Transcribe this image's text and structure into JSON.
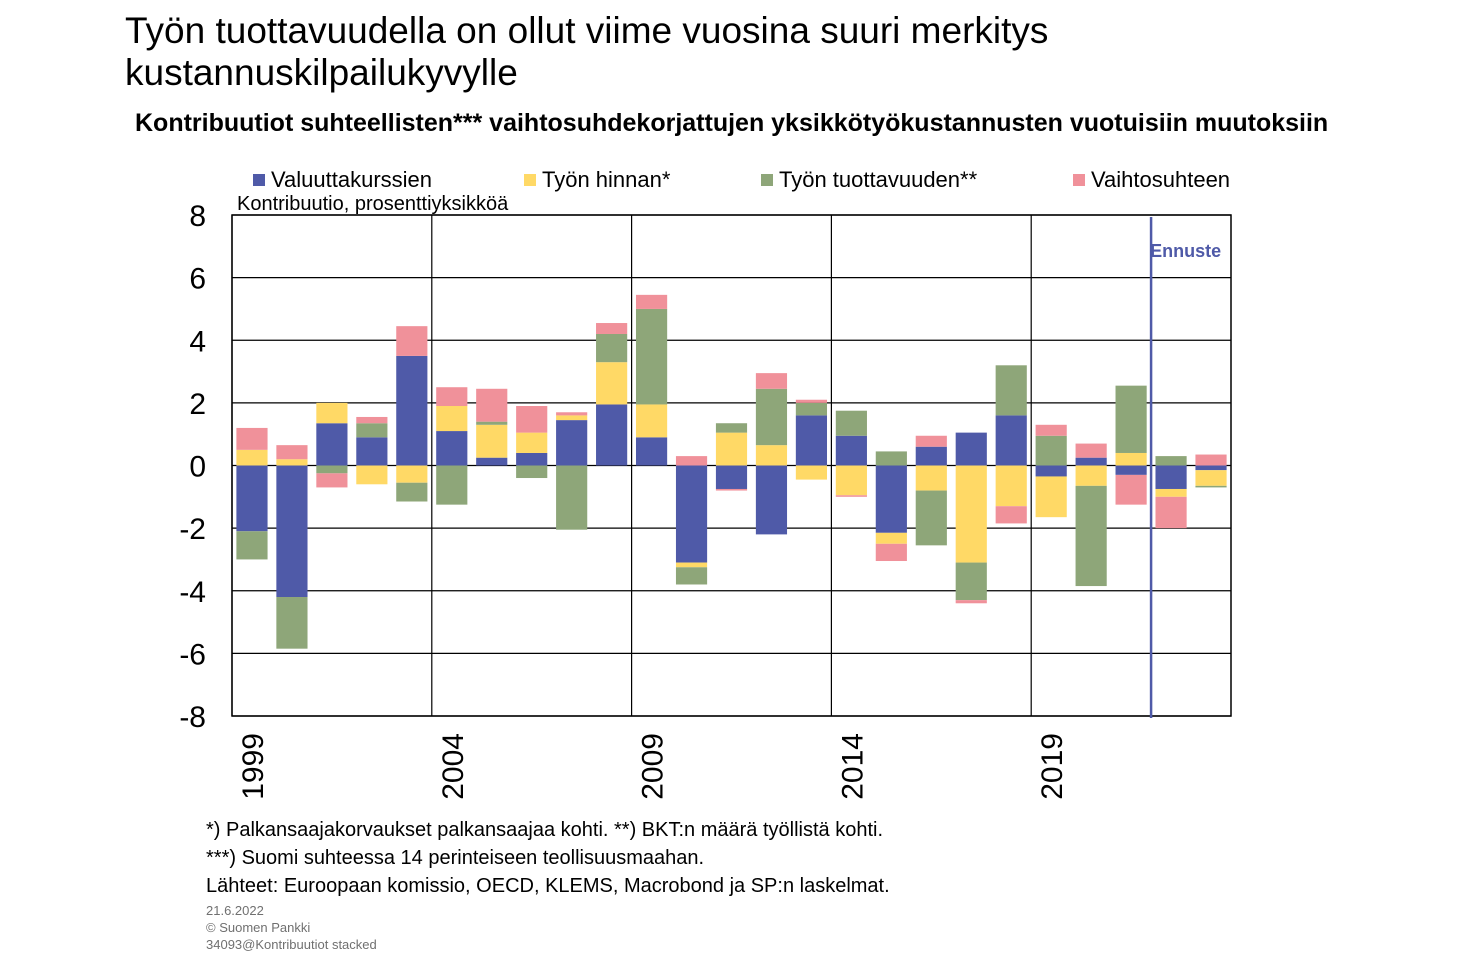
{
  "title": "Työn tuottavuudella on ollut viime vuosina suuri merkitys kustannuskilpailukyvylle",
  "subtitle": "Kontribuutiot suhteellisten*** vaihtosuhdekorjattujen yksikkötyökustannusten vuotuisiin muutoksiin",
  "footnotes": [
    "*) Palkansaajakorvaukset palkansaajaa kohti. **) BKT:n määrä työllistä kohti.",
    "***) Suomi suhteessa 14 perinteiseen teollisuusmaahan.",
    "Lähteet: Euroopaan komissio, OECD, KLEMS, Macrobond ja SP:n laskelmat."
  ],
  "meta": {
    "date": "21.6.2022",
    "copyright": "© Suomen Pankki",
    "file": "34093@Kontribuutiot stacked"
  },
  "chart_data": {
    "type": "bar",
    "stacked": true,
    "ylabel": "Kontribuutio, prosenttiyksikköä",
    "ylim": [
      -8,
      8
    ],
    "yticks": [
      -8,
      -6,
      -4,
      -2,
      0,
      2,
      4,
      6,
      8
    ],
    "xtick_labels": [
      "1999",
      "2004",
      "2009",
      "2014",
      "2019"
    ],
    "grid": true,
    "legend_position": "top",
    "categories": [
      "1999",
      "2000",
      "2001",
      "2002",
      "2003",
      "2004",
      "2005",
      "2006",
      "2007",
      "2008",
      "2009",
      "2010",
      "2011",
      "2012",
      "2013",
      "2014",
      "2015",
      "2016",
      "2017",
      "2018",
      "2019",
      "2020",
      "2021",
      "2022",
      "2023"
    ],
    "forecast": {
      "label": "Ennuste",
      "after_category": "2021",
      "color": "#4F5AA8"
    },
    "series": [
      {
        "name": "Valuuttakurssien",
        "color": "#4F5AA8",
        "values": [
          -2.1,
          -4.2,
          1.35,
          0.9,
          3.5,
          1.1,
          0.25,
          0.4,
          1.45,
          1.95,
          0.9,
          -3.1,
          -0.75,
          -2.2,
          1.6,
          0.95,
          -2.15,
          0.6,
          1.05,
          1.6,
          -0.35,
          0.25,
          -0.3,
          -0.75,
          -0.15
        ]
      },
      {
        "name": "Työn hinnan*",
        "color": "#FFD966",
        "values": [
          0.5,
          0.2,
          0.65,
          -0.6,
          -0.55,
          0.8,
          1.05,
          0.65,
          0.15,
          1.35,
          1.05,
          -0.15,
          1.05,
          0.65,
          -0.45,
          -0.95,
          -0.35,
          -0.8,
          -3.1,
          -1.3,
          -1.3,
          -0.65,
          0.4,
          -0.25,
          -0.5
        ]
      },
      {
        "name": "Työn tuottavuuden**",
        "color": "#8EA679",
        "values": [
          -0.9,
          -1.65,
          -0.25,
          0.45,
          -0.6,
          -1.25,
          0.1,
          -0.4,
          -2.05,
          0.9,
          3.05,
          -0.55,
          0.3,
          1.8,
          0.4,
          0.8,
          0.45,
          -1.75,
          -1.2,
          1.6,
          0.95,
          -3.2,
          2.15,
          0.3,
          -0.05
        ]
      },
      {
        "name": "Vaihtosuhteen",
        "color": "#F0919A",
        "values": [
          0.7,
          0.45,
          -0.45,
          0.2,
          0.95,
          0.6,
          1.05,
          0.85,
          0.1,
          0.35,
          0.45,
          0.3,
          -0.05,
          0.5,
          0.1,
          -0.05,
          -0.55,
          0.35,
          -0.1,
          -0.55,
          0.35,
          0.45,
          -0.95,
          -1.0,
          0.35
        ]
      }
    ]
  }
}
